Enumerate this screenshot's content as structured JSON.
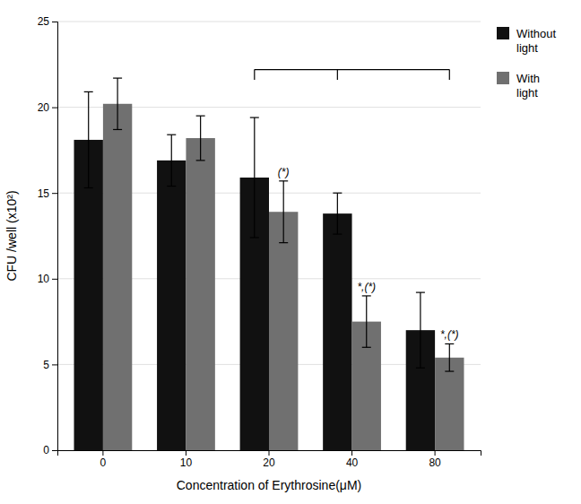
{
  "chart_data": {
    "type": "bar",
    "categories": [
      "0",
      "10",
      "20",
      "40",
      "80"
    ],
    "series": [
      {
        "name": "Without\nlight",
        "color": "#111111",
        "values": [
          18.1,
          16.9,
          15.9,
          13.8,
          7.0
        ],
        "errors": [
          2.8,
          1.5,
          3.5,
          1.2,
          2.2
        ]
      },
      {
        "name": "With\nlight",
        "color": "#707070",
        "values": [
          20.2,
          18.2,
          13.9,
          7.5,
          5.4
        ],
        "errors": [
          1.5,
          1.3,
          1.8,
          1.5,
          0.8
        ]
      }
    ],
    "xlabel": "Concentration of Erythrosine(μM)",
    "ylabel": "CFU /well  (x10²)",
    "ylim": [
      0,
      25
    ],
    "yticks": [
      0,
      5,
      10,
      15,
      20,
      25
    ],
    "grid": true,
    "legend": "right",
    "annotations": [
      {
        "text": "(*)",
        "category": "20",
        "series": "With\nlight"
      },
      {
        "text": "*,(*)",
        "category": "40",
        "series": "With\nlight"
      },
      {
        "text": "*,(*)",
        "category": "80",
        "series": "With\nlight"
      }
    ],
    "bracket": {
      "y": 22.2,
      "drop": 0.6,
      "from": {
        "category": "20",
        "series": "Without\nlight"
      },
      "to": {
        "category": "80",
        "series": "With\nlight"
      },
      "ticks": [
        {
          "category": "40",
          "series": "Without\nlight"
        }
      ]
    }
  }
}
